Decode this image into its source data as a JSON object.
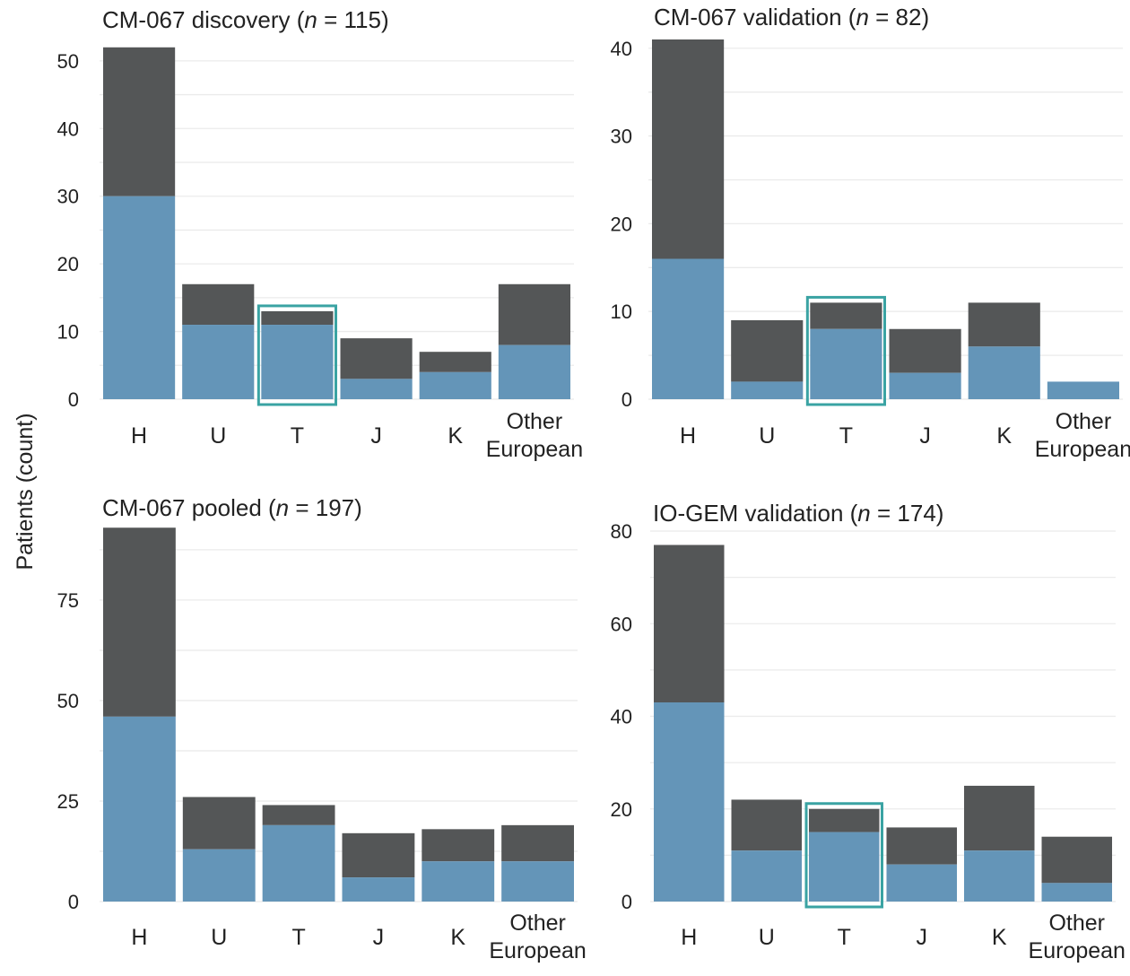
{
  "figure": {
    "ylabel": "Patients (count)",
    "colors": {
      "upper": "#545657",
      "lower": "#6495b8",
      "highlight": "#3aa3a3",
      "grid": "#ebebeb"
    }
  },
  "chart_data": [
    {
      "type": "bar",
      "stacked": true,
      "title": "CM-067 discovery (n = 115)",
      "title_parts": {
        "prefix": "CM-067 discovery (",
        "n": "n",
        "suffix": " = 115)"
      },
      "categories": [
        "H",
        "U",
        "T",
        "J",
        "K",
        "Other European"
      ],
      "category_lines": [
        [
          "H"
        ],
        [
          "U"
        ],
        [
          "T"
        ],
        [
          "J"
        ],
        [
          "K"
        ],
        [
          "Other",
          "European"
        ]
      ],
      "series": [
        {
          "name": "lower",
          "values": [
            30,
            11,
            11,
            3,
            4,
            8
          ]
        },
        {
          "name": "upper",
          "values": [
            22,
            6,
            2,
            6,
            3,
            9
          ]
        }
      ],
      "yticks": [
        0,
        10,
        20,
        30,
        40,
        50
      ],
      "ylim": [
        0,
        52.5
      ],
      "highlight": "T"
    },
    {
      "type": "bar",
      "stacked": true,
      "title": "CM-067 validation (n = 82)",
      "title_parts": {
        "prefix": "CM-067 validation (",
        "n": "n",
        "suffix": " = 82)"
      },
      "categories": [
        "H",
        "U",
        "T",
        "J",
        "K",
        "Other European"
      ],
      "category_lines": [
        [
          "H"
        ],
        [
          "U"
        ],
        [
          "T"
        ],
        [
          "J"
        ],
        [
          "K"
        ],
        [
          "Other",
          "European"
        ]
      ],
      "series": [
        {
          "name": "lower",
          "values": [
            16,
            2,
            8,
            3,
            6,
            2
          ]
        },
        {
          "name": "upper",
          "values": [
            25,
            7,
            3,
            5,
            5,
            0
          ]
        }
      ],
      "yticks": [
        0,
        10,
        20,
        30,
        40
      ],
      "ylim": [
        0,
        41
      ],
      "highlight": "T"
    },
    {
      "type": "bar",
      "stacked": true,
      "title": "CM-067 pooled (n = 197)",
      "title_parts": {
        "prefix": "CM-067 pooled (",
        "n": "n",
        "suffix": " = 197)"
      },
      "categories": [
        "H",
        "U",
        "T",
        "J",
        "K",
        "Other European"
      ],
      "category_lines": [
        [
          "H"
        ],
        [
          "U"
        ],
        [
          "T"
        ],
        [
          "J"
        ],
        [
          "K"
        ],
        [
          "Other",
          "European"
        ]
      ],
      "series": [
        {
          "name": "lower",
          "values": [
            46,
            13,
            19,
            6,
            10,
            10
          ]
        },
        {
          "name": "upper",
          "values": [
            47,
            13,
            5,
            11,
            8,
            9
          ]
        }
      ],
      "yticks": [
        0,
        25,
        50,
        75
      ],
      "ylim": [
        0,
        93.5
      ],
      "highlight": null
    },
    {
      "type": "bar",
      "stacked": true,
      "title": "IO-GEM validation (n = 174)",
      "title_parts": {
        "prefix": "IO-GEM validation (",
        "n": "n",
        "suffix": " = 174)"
      },
      "categories": [
        "H",
        "U",
        "T",
        "J",
        "K",
        "Other European"
      ],
      "category_lines": [
        [
          "H"
        ],
        [
          "U"
        ],
        [
          "T"
        ],
        [
          "J"
        ],
        [
          "K"
        ],
        [
          "Other",
          "European"
        ]
      ],
      "series": [
        {
          "name": "lower",
          "values": [
            43,
            11,
            15,
            8,
            11,
            4
          ]
        },
        {
          "name": "upper",
          "values": [
            34,
            11,
            5,
            8,
            14,
            10
          ]
        }
      ],
      "yticks": [
        0,
        20,
        40,
        60,
        80
      ],
      "ylim": [
        0,
        80
      ],
      "highlight": "T"
    }
  ]
}
